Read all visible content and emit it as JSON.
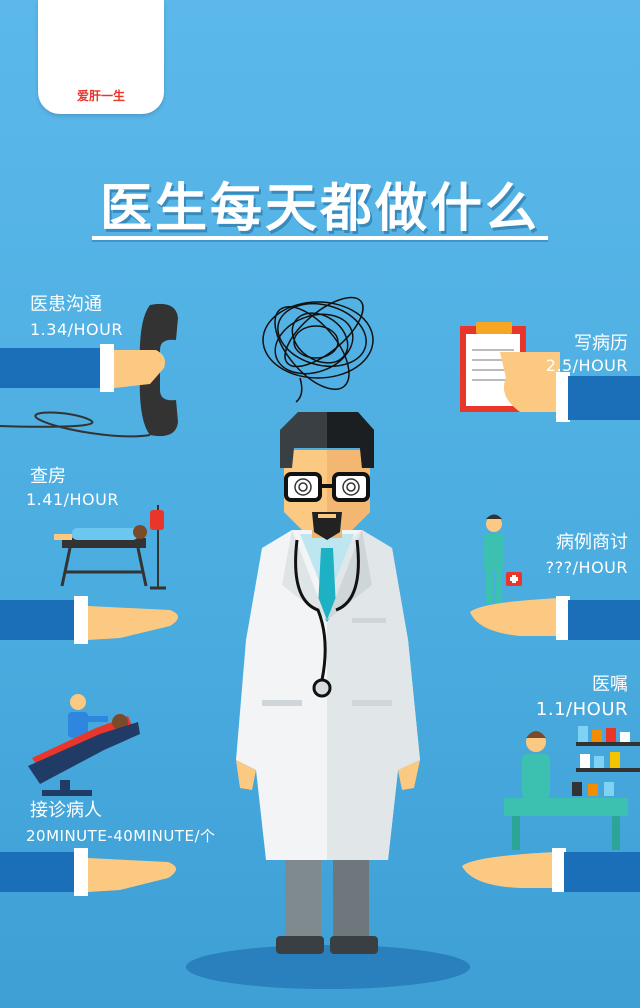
{
  "logo": {
    "text": "爱肝一生"
  },
  "title": "医生每天都做什么",
  "activities": [
    {
      "label": "医患沟通",
      "value": "1.34/HOUR"
    },
    {
      "label": "写病历",
      "value": "2.5/HOUR"
    },
    {
      "label": "查房",
      "value": "1.41/HOUR"
    },
    {
      "label": "病例商讨",
      "value": "???/HOUR"
    },
    {
      "label": "医嘱",
      "value": "1.1/HOUR"
    },
    {
      "label": "接诊病人",
      "value": "20MINUTE-40MINUTE/个"
    }
  ],
  "colors": {
    "sleeve": "#1a6fb8",
    "skin": "#fcc983",
    "coat": "#f2f4f5",
    "tie": "#1eb1c4",
    "shadow": "#2a7fbd"
  }
}
